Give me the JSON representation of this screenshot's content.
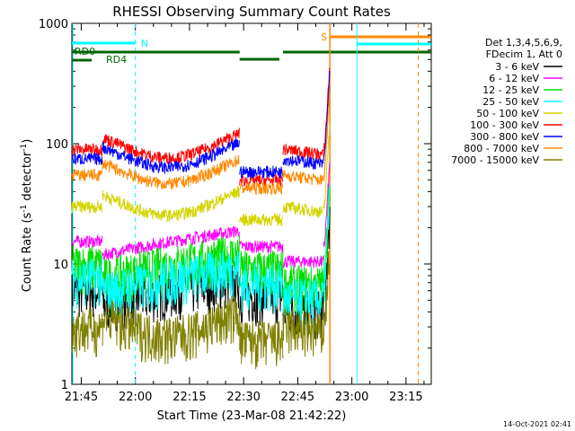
{
  "chart_data": {
    "type": "line",
    "title": "RHESSI Observing Summary Count Rates",
    "xlabel": "Start Time (23-Mar-08 21:42:22)",
    "ylabel_main": "Count Rate (s",
    "ylabel_sup1": "-1",
    "ylabel_mid": " detector",
    "ylabel_sup2": "-1",
    "ylabel_end": ")",
    "yscale": "log",
    "ylim": [
      1,
      1000
    ],
    "xlim": [
      "21:42:22",
      "23:22"
    ],
    "x_ticks": [
      {
        "label": "21:45",
        "minutes": 2.6
      },
      {
        "label": "22:00",
        "minutes": 17.6
      },
      {
        "label": "22:15",
        "minutes": 32.6
      },
      {
        "label": "22:30",
        "minutes": 47.6
      },
      {
        "label": "22:45",
        "minutes": 62.6
      },
      {
        "label": "23:00",
        "minutes": 77.6
      },
      {
        "label": "23:15",
        "minutes": 92.6
      }
    ],
    "y_ticks": [
      {
        "label": "1",
        "value": 1
      },
      {
        "label": "10",
        "value": 10
      },
      {
        "label": "100",
        "value": 100
      },
      {
        "label": "1000",
        "value": 1000
      }
    ],
    "legend_header": [
      "Det 1,3,4,5,6,9,",
      "FDecim 1, Att 0"
    ],
    "series": [
      {
        "name": "3 - 6 keV",
        "color": "#000000",
        "base": 5.5
      },
      {
        "name": "6 - 12 keV",
        "color": "#ff00ff",
        "base": 14
      },
      {
        "name": "12 - 25 keV",
        "color": "#00dd00",
        "base": 9
      },
      {
        "name": "25 - 50 keV",
        "color": "#00ffff",
        "base": 7
      },
      {
        "name": "50 - 100 keV",
        "color": "#d4d400",
        "base": 30
      },
      {
        "name": "100 - 300 keV",
        "color": "#ff0000",
        "base": 90
      },
      {
        "name": "300 - 800 keV",
        "color": "#0000ff",
        "base": 75
      },
      {
        "name": "800 - 7000 keV",
        "color": "#ff8800",
        "base": 55
      },
      {
        "name": "7000 - 15000 keV",
        "color": "#808000",
        "base": 3
      }
    ],
    "annotations": [
      {
        "text": "RD0",
        "color": "#006600"
      },
      {
        "text": "RD4",
        "color": "#006600"
      },
      {
        "text": "N",
        "color": "#00ffff"
      },
      {
        "text": "S",
        "color": "#ff8800"
      }
    ],
    "timestamp": "14-Oct-2021 02:41"
  }
}
